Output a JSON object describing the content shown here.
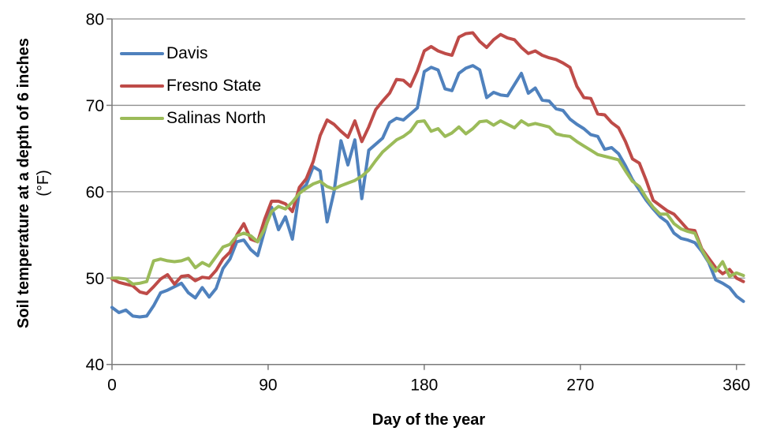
{
  "figure": {
    "y_axis_title_line1": "Soil temperature at a depth of 6 inches",
    "y_axis_title_line2": "(°F)",
    "x_axis_title": "Day of the year"
  },
  "colors": {
    "davis": "#4F81BD",
    "fresno_state": "#BE4B48",
    "salinas_north": "#9BBB59",
    "gridline": "#8F8F8F",
    "axis": "#7A7A7A",
    "tick_label": "#000000"
  },
  "chart_data": {
    "type": "line",
    "title": "",
    "xlabel": "Day of the year",
    "ylabel": "Soil temperature at a depth of 6 inches (°F)",
    "xlim": [
      0,
      365
    ],
    "ylim": [
      40,
      80
    ],
    "x_ticks": [
      0,
      90,
      180,
      270,
      360
    ],
    "y_ticks": [
      40,
      50,
      60,
      70,
      80
    ],
    "grid": "horizontal-only",
    "legend_position": "top-left-inside",
    "x_start": 0,
    "x_step_days": 4,
    "series": [
      {
        "name": "Davis",
        "color": "#4F81BD",
        "values": [
          46.6,
          46.0,
          46.3,
          45.6,
          45.5,
          45.6,
          46.8,
          48.3,
          48.6,
          49.0,
          49.4,
          48.3,
          47.7,
          48.9,
          47.8,
          48.8,
          51.1,
          52.2,
          54.2,
          54.4,
          53.3,
          52.6,
          55.5,
          58.2,
          55.6,
          57.1,
          54.5,
          60.0,
          60.8,
          62.9,
          62.4,
          56.5,
          60.0,
          65.9,
          63.1,
          66.0,
          59.2,
          64.8,
          65.5,
          66.2,
          68.0,
          68.5,
          68.3,
          69.0,
          69.7,
          73.9,
          74.4,
          74.1,
          71.9,
          71.7,
          73.7,
          74.3,
          74.6,
          74.1,
          70.9,
          71.5,
          71.2,
          71.1,
          72.4,
          73.7,
          71.4,
          72.0,
          70.6,
          70.5,
          69.6,
          69.4,
          68.4,
          67.8,
          67.3,
          66.6,
          66.4,
          64.9,
          65.1,
          64.4,
          63.0,
          61.4,
          60.2,
          59.0,
          58.0,
          57.1,
          56.5,
          55.2,
          54.6,
          54.4,
          54.1,
          53.1,
          51.8,
          49.8,
          49.4,
          48.9,
          47.9,
          47.3
        ]
      },
      {
        "name": "Fresno State",
        "color": "#BE4B48",
        "values": [
          49.9,
          49.5,
          49.3,
          49.1,
          48.4,
          48.2,
          49.0,
          49.9,
          50.4,
          49.3,
          50.2,
          50.3,
          49.7,
          50.1,
          50.0,
          50.9,
          52.2,
          53.0,
          55.0,
          56.3,
          54.5,
          54.2,
          56.8,
          58.9,
          58.9,
          58.6,
          57.7,
          60.5,
          61.5,
          63.5,
          66.5,
          68.3,
          67.8,
          67.0,
          66.3,
          68.2,
          65.8,
          67.5,
          69.5,
          70.5,
          71.4,
          73.0,
          72.9,
          72.2,
          74.0,
          76.3,
          76.8,
          76.3,
          76.0,
          75.8,
          77.9,
          78.3,
          78.4,
          77.4,
          76.7,
          77.6,
          78.2,
          77.8,
          77.6,
          76.7,
          76.0,
          76.3,
          75.8,
          75.5,
          75.3,
          74.9,
          74.4,
          72.2,
          70.9,
          70.8,
          69.0,
          68.9,
          68.0,
          67.4,
          65.8,
          63.8,
          63.3,
          61.3,
          59.0,
          58.4,
          57.8,
          57.4,
          56.5,
          55.6,
          55.5,
          53.4,
          52.3,
          51.2,
          50.5,
          51.0,
          50.0,
          49.6
        ]
      },
      {
        "name": "Salinas North",
        "color": "#9BBB59",
        "values": [
          50.0,
          50.0,
          49.9,
          49.3,
          49.4,
          49.6,
          52.0,
          52.2,
          52.0,
          51.9,
          52.0,
          52.3,
          51.2,
          51.8,
          51.4,
          52.5,
          53.6,
          53.9,
          54.9,
          55.2,
          54.9,
          54.2,
          55.7,
          57.7,
          58.3,
          58.0,
          58.8,
          59.8,
          60.4,
          60.9,
          61.2,
          60.6,
          60.3,
          60.7,
          61.0,
          61.3,
          61.8,
          62.5,
          63.6,
          64.6,
          65.3,
          66.0,
          66.4,
          67.0,
          68.1,
          68.2,
          67.0,
          67.3,
          66.4,
          66.8,
          67.5,
          66.7,
          67.3,
          68.1,
          68.2,
          67.7,
          68.2,
          67.8,
          67.4,
          68.2,
          67.7,
          67.9,
          67.7,
          67.5,
          66.7,
          66.5,
          66.4,
          65.8,
          65.3,
          64.8,
          64.3,
          64.1,
          63.9,
          63.7,
          62.4,
          61.2,
          60.6,
          59.3,
          58.2,
          57.4,
          57.4,
          56.3,
          55.7,
          55.4,
          55.2,
          53.3,
          51.9,
          50.8,
          51.9,
          50.2,
          50.6,
          50.3
        ]
      }
    ]
  }
}
